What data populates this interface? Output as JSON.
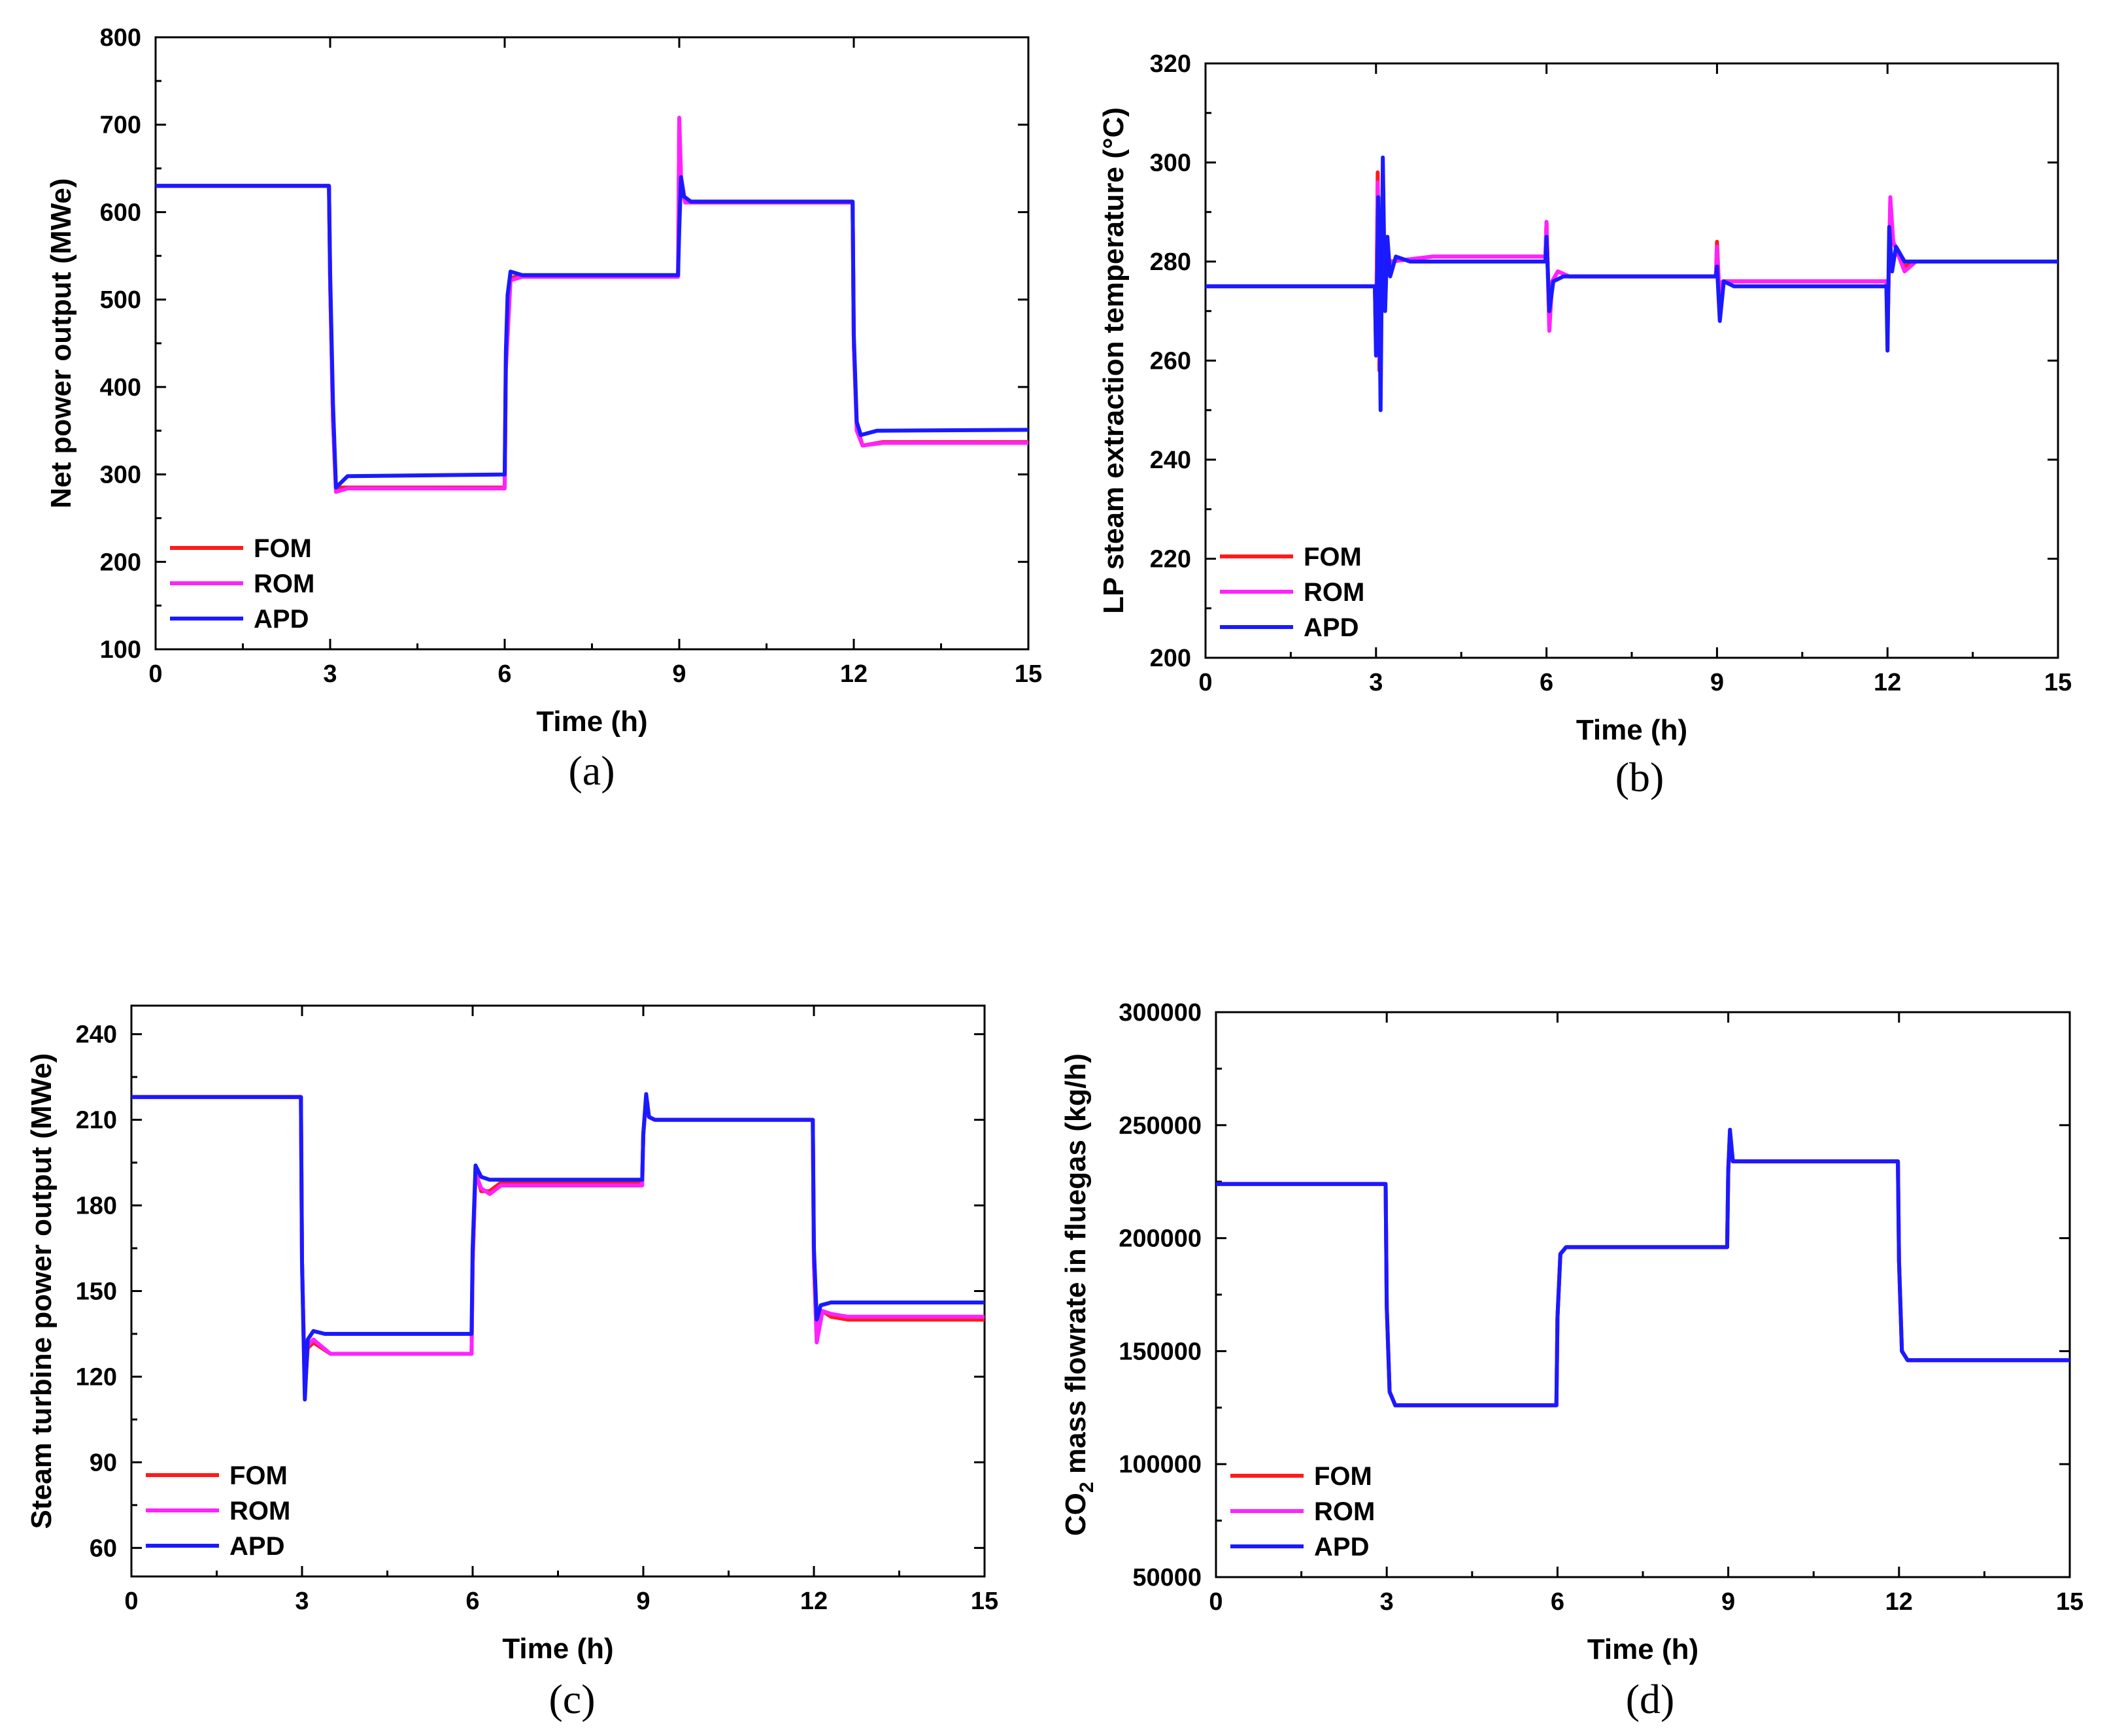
{
  "chart_data": [
    {
      "panel": "a",
      "type": "line",
      "caption": "(a)",
      "xlabel": "Time (h)",
      "ylabel": "Net power output (MWe)",
      "xlim": [
        0,
        15
      ],
      "ylim": [
        100,
        800
      ],
      "xticks": [
        0,
        3,
        6,
        9,
        12,
        15
      ],
      "yticks": [
        100,
        200,
        300,
        400,
        500,
        600,
        700,
        800
      ],
      "legend": "lower-left",
      "series": [
        {
          "name": "FOM",
          "color": "#ff1a1a",
          "x": [
            0,
            2.98,
            3.0,
            3.05,
            3.1,
            3.3,
            6.0,
            6.02,
            6.1,
            6.3,
            8.98,
            9.0,
            9.03,
            9.1,
            11.98,
            12.0,
            12.05,
            12.15,
            12.5,
            15
          ],
          "y": [
            630,
            630,
            520,
            360,
            285,
            285,
            285,
            430,
            525,
            527,
            527,
            702,
            640,
            612,
            612,
            450,
            355,
            333,
            337,
            337
          ]
        },
        {
          "name": "ROM",
          "color": "#ff22ff",
          "x": [
            0,
            2.98,
            3.0,
            3.05,
            3.1,
            3.3,
            6.0,
            6.02,
            6.1,
            6.3,
            8.98,
            9.0,
            9.03,
            9.1,
            11.98,
            12.0,
            12.05,
            12.15,
            12.5,
            15
          ],
          "y": [
            630,
            630,
            520,
            360,
            280,
            284,
            284,
            420,
            522,
            526,
            526,
            708,
            640,
            611,
            611,
            450,
            350,
            333,
            336,
            336
          ]
        },
        {
          "name": "APD",
          "color": "#1a1aff",
          "x": [
            0,
            2.98,
            3.0,
            3.05,
            3.1,
            3.3,
            6.0,
            6.02,
            6.05,
            6.1,
            6.3,
            8.98,
            9.0,
            9.03,
            9.08,
            9.2,
            11.98,
            12.0,
            12.05,
            12.12,
            12.4,
            15
          ],
          "y": [
            630,
            630,
            530,
            380,
            285,
            298,
            300,
            440,
            505,
            532,
            528,
            528,
            580,
            640,
            618,
            612,
            612,
            460,
            360,
            345,
            350,
            351
          ]
        }
      ]
    },
    {
      "panel": "b",
      "type": "line",
      "caption": "(b)",
      "xlabel": "Time (h)",
      "ylabel": "LP steam extraction temperature (°C)",
      "xlim": [
        0,
        15
      ],
      "ylim": [
        200,
        320
      ],
      "xticks": [
        0,
        3,
        6,
        9,
        12,
        15
      ],
      "yticks": [
        200,
        220,
        240,
        260,
        280,
        300,
        320
      ],
      "legend": "lower-left",
      "series": [
        {
          "name": "FOM",
          "color": "#ff1a1a",
          "x": [
            0,
            2.98,
            3.0,
            3.03,
            3.06,
            3.1,
            3.15,
            3.25,
            4.0,
            5.98,
            6.0,
            6.05,
            6.1,
            6.2,
            6.4,
            8.98,
            9.0,
            9.05,
            9.1,
            9.2,
            11.98,
            12.0,
            12.05,
            12.1,
            12.3,
            12.5,
            15
          ],
          "y": [
            275,
            275,
            262,
            298,
            258,
            286,
            276,
            280,
            281,
            281,
            288,
            267,
            276,
            278,
            277,
            277,
            284,
            271,
            276,
            276,
            276,
            266,
            292,
            284,
            279,
            280,
            280
          ]
        },
        {
          "name": "ROM",
          "color": "#ff22ff",
          "x": [
            0,
            2.98,
            3.0,
            3.03,
            3.06,
            3.1,
            3.15,
            3.25,
            4.0,
            5.98,
            6.0,
            6.05,
            6.1,
            6.2,
            6.4,
            8.98,
            9.0,
            9.05,
            9.1,
            9.2,
            11.98,
            12.0,
            12.05,
            12.1,
            12.3,
            12.5,
            15
          ],
          "y": [
            275,
            275,
            264,
            296,
            260,
            285,
            276,
            280,
            281,
            281,
            288,
            266,
            276,
            278,
            277,
            277,
            283,
            270,
            276,
            276,
            276,
            265,
            293,
            284,
            278,
            280,
            280
          ]
        },
        {
          "name": "APD",
          "color": "#1a1aff",
          "x": [
            0,
            2.98,
            3.0,
            3.04,
            3.08,
            3.12,
            3.16,
            3.2,
            3.25,
            3.35,
            3.6,
            5.98,
            6.0,
            6.05,
            6.12,
            6.3,
            8.98,
            9.0,
            9.05,
            9.12,
            9.3,
            11.98,
            12.0,
            12.03,
            12.08,
            12.15,
            12.3,
            15
          ],
          "y": [
            275,
            275,
            261,
            293,
            250,
            301,
            270,
            285,
            277,
            281,
            280,
            280,
            285,
            270,
            276,
            277,
            277,
            279,
            268,
            276,
            275,
            275,
            262,
            287,
            278,
            283,
            280,
            280
          ]
        }
      ]
    },
    {
      "panel": "c",
      "type": "line",
      "caption": "(c)",
      "xlabel": "Time (h)",
      "ylabel": "Steam turbine power output (MWe)",
      "xlim": [
        0,
        15
      ],
      "ylim": [
        50,
        250
      ],
      "xticks": [
        0,
        3,
        6,
        9,
        12,
        15
      ],
      "yticks": [
        60,
        90,
        120,
        150,
        180,
        210,
        240
      ],
      "legend": "lower-left",
      "series": [
        {
          "name": "FOM",
          "color": "#ff1a1a",
          "x": [
            0,
            2.98,
            3.0,
            3.05,
            3.1,
            3.2,
            3.5,
            5.98,
            6.0,
            6.05,
            6.15,
            6.3,
            6.5,
            8.98,
            9.0,
            9.05,
            9.1,
            9.2,
            11.98,
            12.0,
            12.05,
            12.15,
            12.3,
            12.6,
            15
          ],
          "y": [
            218,
            218,
            160,
            115,
            130,
            132,
            128,
            128,
            160,
            192,
            185,
            185,
            188,
            188,
            205,
            217,
            211,
            210,
            210,
            160,
            133,
            143,
            141,
            140,
            140
          ]
        },
        {
          "name": "ROM",
          "color": "#ff22ff",
          "x": [
            0,
            2.98,
            3.0,
            3.05,
            3.1,
            3.2,
            3.5,
            5.98,
            6.0,
            6.05,
            6.15,
            6.3,
            6.5,
            8.98,
            9.0,
            9.05,
            9.1,
            9.2,
            11.98,
            12.0,
            12.05,
            12.15,
            12.3,
            12.6,
            15
          ],
          "y": [
            218,
            218,
            160,
            116,
            131,
            133,
            128,
            128,
            160,
            191,
            186,
            184,
            187,
            187,
            205,
            217,
            211,
            210,
            210,
            160,
            132,
            143,
            142,
            141,
            141
          ]
        },
        {
          "name": "APD",
          "color": "#1a1aff",
          "x": [
            0,
            2.98,
            3.0,
            3.05,
            3.1,
            3.2,
            3.4,
            5.98,
            6.0,
            6.05,
            6.15,
            6.3,
            8.98,
            9.0,
            9.05,
            9.1,
            9.2,
            11.98,
            12.0,
            12.05,
            12.12,
            12.3,
            15
          ],
          "y": [
            218,
            218,
            160,
            112,
            133,
            136,
            135,
            135,
            165,
            194,
            190,
            189,
            189,
            205,
            219,
            211,
            210,
            210,
            165,
            140,
            145,
            146,
            146
          ]
        }
      ]
    },
    {
      "panel": "d",
      "type": "line",
      "caption": "(d)",
      "xlabel": "Time (h)",
      "ylabel": "CO2 mass flowrate in fluegas (kg/h)",
      "ylabel_main": "CO",
      "ylabel_sub": "2",
      "ylabel_rest": " mass flowrate in fluegas (kg/h)",
      "xlim": [
        0,
        15
      ],
      "ylim": [
        50000,
        300000
      ],
      "xticks": [
        0,
        3,
        6,
        9,
        12,
        15
      ],
      "yticks": [
        50000,
        100000,
        150000,
        200000,
        250000,
        300000
      ],
      "legend": "lower-left",
      "series": [
        {
          "name": "FOM",
          "color": "#ff1a1a",
          "x": [
            0,
            2.98,
            3.0,
            3.05,
            3.15,
            5.98,
            6.0,
            6.05,
            6.15,
            8.98,
            9.0,
            9.03,
            9.08,
            11.98,
            12.0,
            12.05,
            12.15,
            15
          ],
          "y": [
            224000,
            224000,
            170000,
            132000,
            126000,
            126000,
            165000,
            193000,
            196000,
            196000,
            230000,
            246000,
            234000,
            234000,
            190000,
            150000,
            146000,
            146000
          ]
        },
        {
          "name": "ROM",
          "color": "#ff22ff",
          "x": [
            0,
            2.98,
            3.0,
            3.05,
            3.15,
            5.98,
            6.0,
            6.05,
            6.15,
            8.98,
            9.0,
            9.03,
            9.08,
            11.98,
            12.0,
            12.05,
            12.15,
            15
          ],
          "y": [
            224000,
            224000,
            170000,
            132000,
            126000,
            126000,
            165000,
            193000,
            196000,
            196000,
            230000,
            247000,
            234000,
            234000,
            190000,
            150000,
            146000,
            146000
          ]
        },
        {
          "name": "APD",
          "color": "#1a1aff",
          "x": [
            0,
            2.98,
            3.0,
            3.05,
            3.15,
            5.98,
            6.0,
            6.05,
            6.15,
            8.98,
            9.0,
            9.03,
            9.08,
            11.98,
            12.0,
            12.05,
            12.15,
            15
          ],
          "y": [
            224000,
            224000,
            170000,
            132000,
            126000,
            126000,
            165000,
            193000,
            196000,
            196000,
            230000,
            248000,
            234000,
            234000,
            190000,
            150000,
            146000,
            146000
          ]
        }
      ]
    }
  ]
}
